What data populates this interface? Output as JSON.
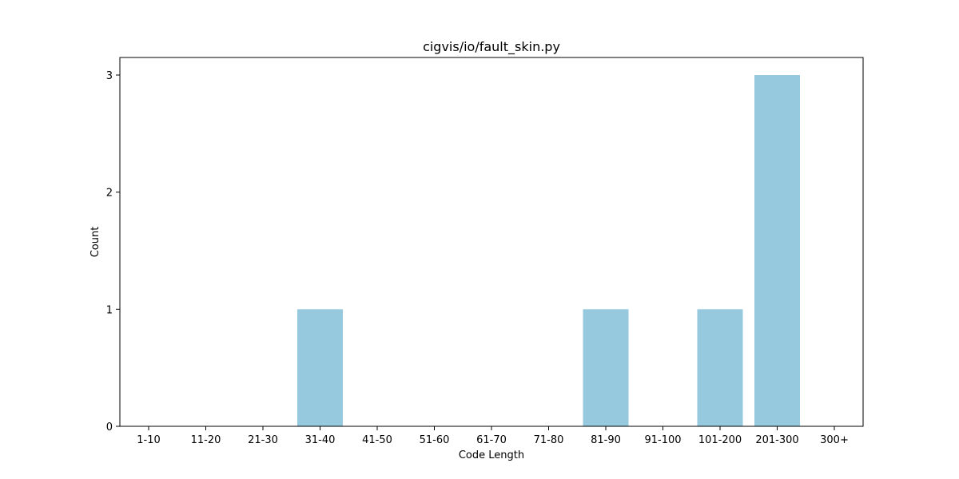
{
  "chart_data": {
    "type": "bar",
    "title": "cigvis/io/fault_skin.py",
    "xlabel": "Code Length",
    "ylabel": "Count",
    "categories": [
      "1-10",
      "11-20",
      "21-30",
      "31-40",
      "41-50",
      "51-60",
      "61-70",
      "71-80",
      "81-90",
      "91-100",
      "101-200",
      "201-300",
      "300+"
    ],
    "values": [
      0,
      0,
      0,
      1,
      0,
      0,
      0,
      0,
      1,
      0,
      1,
      3,
      0
    ],
    "ylim": [
      0,
      3.15
    ],
    "yticks": [
      0,
      1,
      2,
      3
    ],
    "grid": false,
    "bar_color": "#96c9dd"
  }
}
